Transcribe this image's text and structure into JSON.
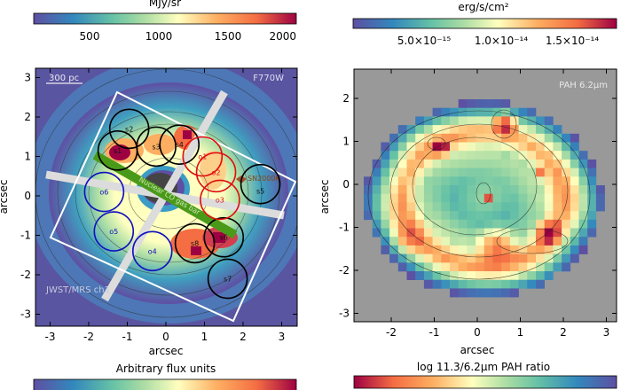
{
  "chart_data": [
    {
      "type": "heatmap",
      "panel": "left",
      "image_label": "F770W",
      "scale_bar_label": "300 pc",
      "footprint_label": "JWST/MRS ch1",
      "bar_label": "Nuclear CO gas bar",
      "supernova_label": "SN2000K",
      "xlabel": "arcsec",
      "ylabel": "arcsec",
      "xlim": [
        -3.3,
        3.3
      ],
      "ylim": [
        -3.3,
        3.3
      ],
      "xticks": [
        "-3",
        "-2",
        "-1",
        "0",
        "1",
        "2",
        "3"
      ],
      "yticks": [
        "3",
        "2",
        "1",
        "0",
        "-1",
        "-2",
        "-3"
      ],
      "colorbar": {
        "label": "MJy/sr",
        "range": [
          100,
          2000
        ],
        "ticks": [
          "500",
          "1000",
          "1500",
          "2000"
        ],
        "colormap": "spectral-reversed",
        "position": "top"
      },
      "colorbar_bottom": {
        "label": "Arbitrary flux units",
        "colormap": "spectral-reversed"
      },
      "regions": [
        {
          "name": "s1",
          "x": -1.25,
          "y": 1.15,
          "color": "#000000"
        },
        {
          "name": "s2",
          "x": -0.95,
          "y": 1.7,
          "color": "#000000"
        },
        {
          "name": "s3",
          "x": -0.25,
          "y": 1.25,
          "color": "#000000"
        },
        {
          "name": "s4",
          "x": 0.35,
          "y": 1.3,
          "color": "#000000"
        },
        {
          "name": "s5",
          "x": 2.45,
          "y": 0.3,
          "color": "#000000"
        },
        {
          "name": "s6",
          "x": 1.5,
          "y": -1.05,
          "color": "#000000"
        },
        {
          "name": "s7",
          "x": 1.6,
          "y": -2.1,
          "color": "#000000"
        },
        {
          "name": "s8",
          "x": 0.75,
          "y": -1.2,
          "color": "#000000"
        },
        {
          "name": "o1",
          "x": 0.95,
          "y": 1.0,
          "color": "#e01010"
        },
        {
          "name": "o2",
          "x": 1.3,
          "y": 0.6,
          "color": "#e01010"
        },
        {
          "name": "o3",
          "x": 1.4,
          "y": -0.1,
          "color": "#e01010"
        },
        {
          "name": "o4",
          "x": -0.35,
          "y": -1.4,
          "color": "#1010c0"
        },
        {
          "name": "o5",
          "x": -1.35,
          "y": -0.9,
          "color": "#1010c0"
        },
        {
          "name": "o6",
          "x": -1.6,
          "y": 0.1,
          "color": "#1010c0"
        }
      ]
    },
    {
      "type": "heatmap",
      "panel": "right",
      "image_label": "PAH 6.2μm",
      "xlabel": "arcsec",
      "ylabel": "arcsec",
      "xlim": [
        -2.7,
        3.2
      ],
      "ylim": [
        -3.1,
        2.7
      ],
      "xticks": [
        "-2",
        "-1",
        "0",
        "1",
        "2",
        "3"
      ],
      "yticks": [
        "2",
        "1",
        "0",
        "-1",
        "-2",
        "-3"
      ],
      "background_color": "#999999",
      "colorbar": {
        "label": "erg/s/cm²",
        "ticks": [
          "5.0×10⁻¹⁵",
          "1.0×10⁻¹⁴",
          "1.5×10⁻¹⁴"
        ],
        "colormap": "spectral-reversed",
        "position": "top"
      },
      "colorbar_bottom": {
        "label": "log 11.3/6.2μm PAH ratio",
        "colormap": "spectral"
      }
    }
  ]
}
